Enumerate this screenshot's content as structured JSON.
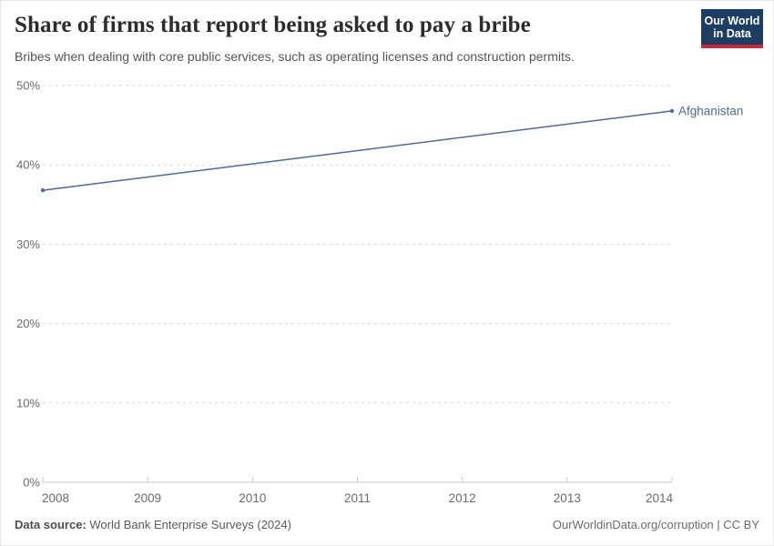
{
  "header": {
    "title": "Share of firms that report being asked to pay a bribe",
    "subtitle": "Bribes when dealing with core public services, such as operating licenses and construction permits.",
    "logo": {
      "line1": "Our World",
      "line2": "in Data",
      "bg_color": "#1d3d63",
      "accent_color": "#c8283c",
      "text_color": "#ffffff"
    }
  },
  "chart_data": {
    "type": "line",
    "title": "Share of firms that report being asked to pay a bribe",
    "xlabel": "",
    "ylabel": "",
    "xlim": [
      2008,
      2014
    ],
    "ylim": [
      0,
      50
    ],
    "x_ticks": [
      "2008",
      "2009",
      "2010",
      "2011",
      "2012",
      "2013",
      "2014"
    ],
    "y_ticks": [
      "0%",
      "10%",
      "20%",
      "30%",
      "40%",
      "50%"
    ],
    "grid": "horizontal-dashed",
    "legend_position": "end-of-line-label",
    "series": [
      {
        "name": "Afghanistan",
        "color": "#4c6a9c",
        "points": [
          {
            "year": 2008,
            "value": 36.8
          },
          {
            "year": 2014,
            "value": 46.8
          }
        ]
      }
    ],
    "colors": {
      "gridline": "#d9d9d9",
      "axis": "#c8c8c8",
      "tick_label": "#6b6b6b"
    }
  },
  "footer": {
    "source_label": "Data source:",
    "source_value": "World Bank Enterprise Surveys (2024)",
    "rights": "OurWorldinData.org/corruption | CC BY"
  }
}
